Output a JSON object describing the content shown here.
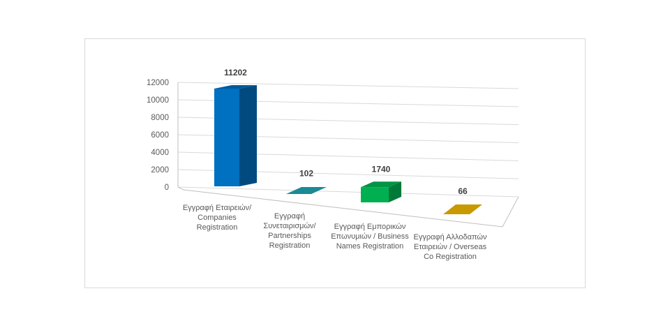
{
  "chart_data": {
    "type": "bar",
    "style": "3d-column",
    "title": "",
    "xlabel": "",
    "ylabel": "",
    "ylim": [
      0,
      12000
    ],
    "yticks": [
      "0",
      "2000",
      "4000",
      "6000",
      "8000",
      "10000",
      "12000"
    ],
    "grid": true,
    "categories": [
      "Εγγραφή Εταιρειών/ Companies Registration",
      "Εγγραφή Συνεταιρισμών/ Partnerships Registration",
      "Εγγραφή Εμπορικών Επωνυμιών / Business Names Registration",
      "Εγγραφή Αλλοδαπών Εταιρειών / Overseas Co Registration"
    ],
    "category_lines": [
      [
        "Εγγραφή Εταιρειών/",
        "Companies",
        "Registration"
      ],
      [
        "Εγγραφή",
        "Συνεταιρισμών/",
        "Partnerships",
        "Registration"
      ],
      [
        "Εγγραφή Εμπορικών",
        "Επωνυμιών / Business",
        "Names Registration"
      ],
      [
        "Εγγραφή Αλλοδαπών",
        "Εταιρειών / Overseas",
        "Co Registration"
      ]
    ],
    "values": [
      11202,
      102,
      1740,
      66
    ],
    "data_labels": [
      "11202",
      "102",
      "1740",
      "66"
    ],
    "colors": [
      {
        "front": "#0070c0",
        "side": "#004a80",
        "top": "#005a9e"
      },
      {
        "front": "#1b8a94",
        "side": "#136068",
        "top": "#167a84"
      },
      {
        "front": "#00b050",
        "side": "#007a38",
        "top": "#009444"
      },
      {
        "front": "#c89a00",
        "side": "#8c6c00",
        "top": "#c89a00"
      }
    ]
  }
}
